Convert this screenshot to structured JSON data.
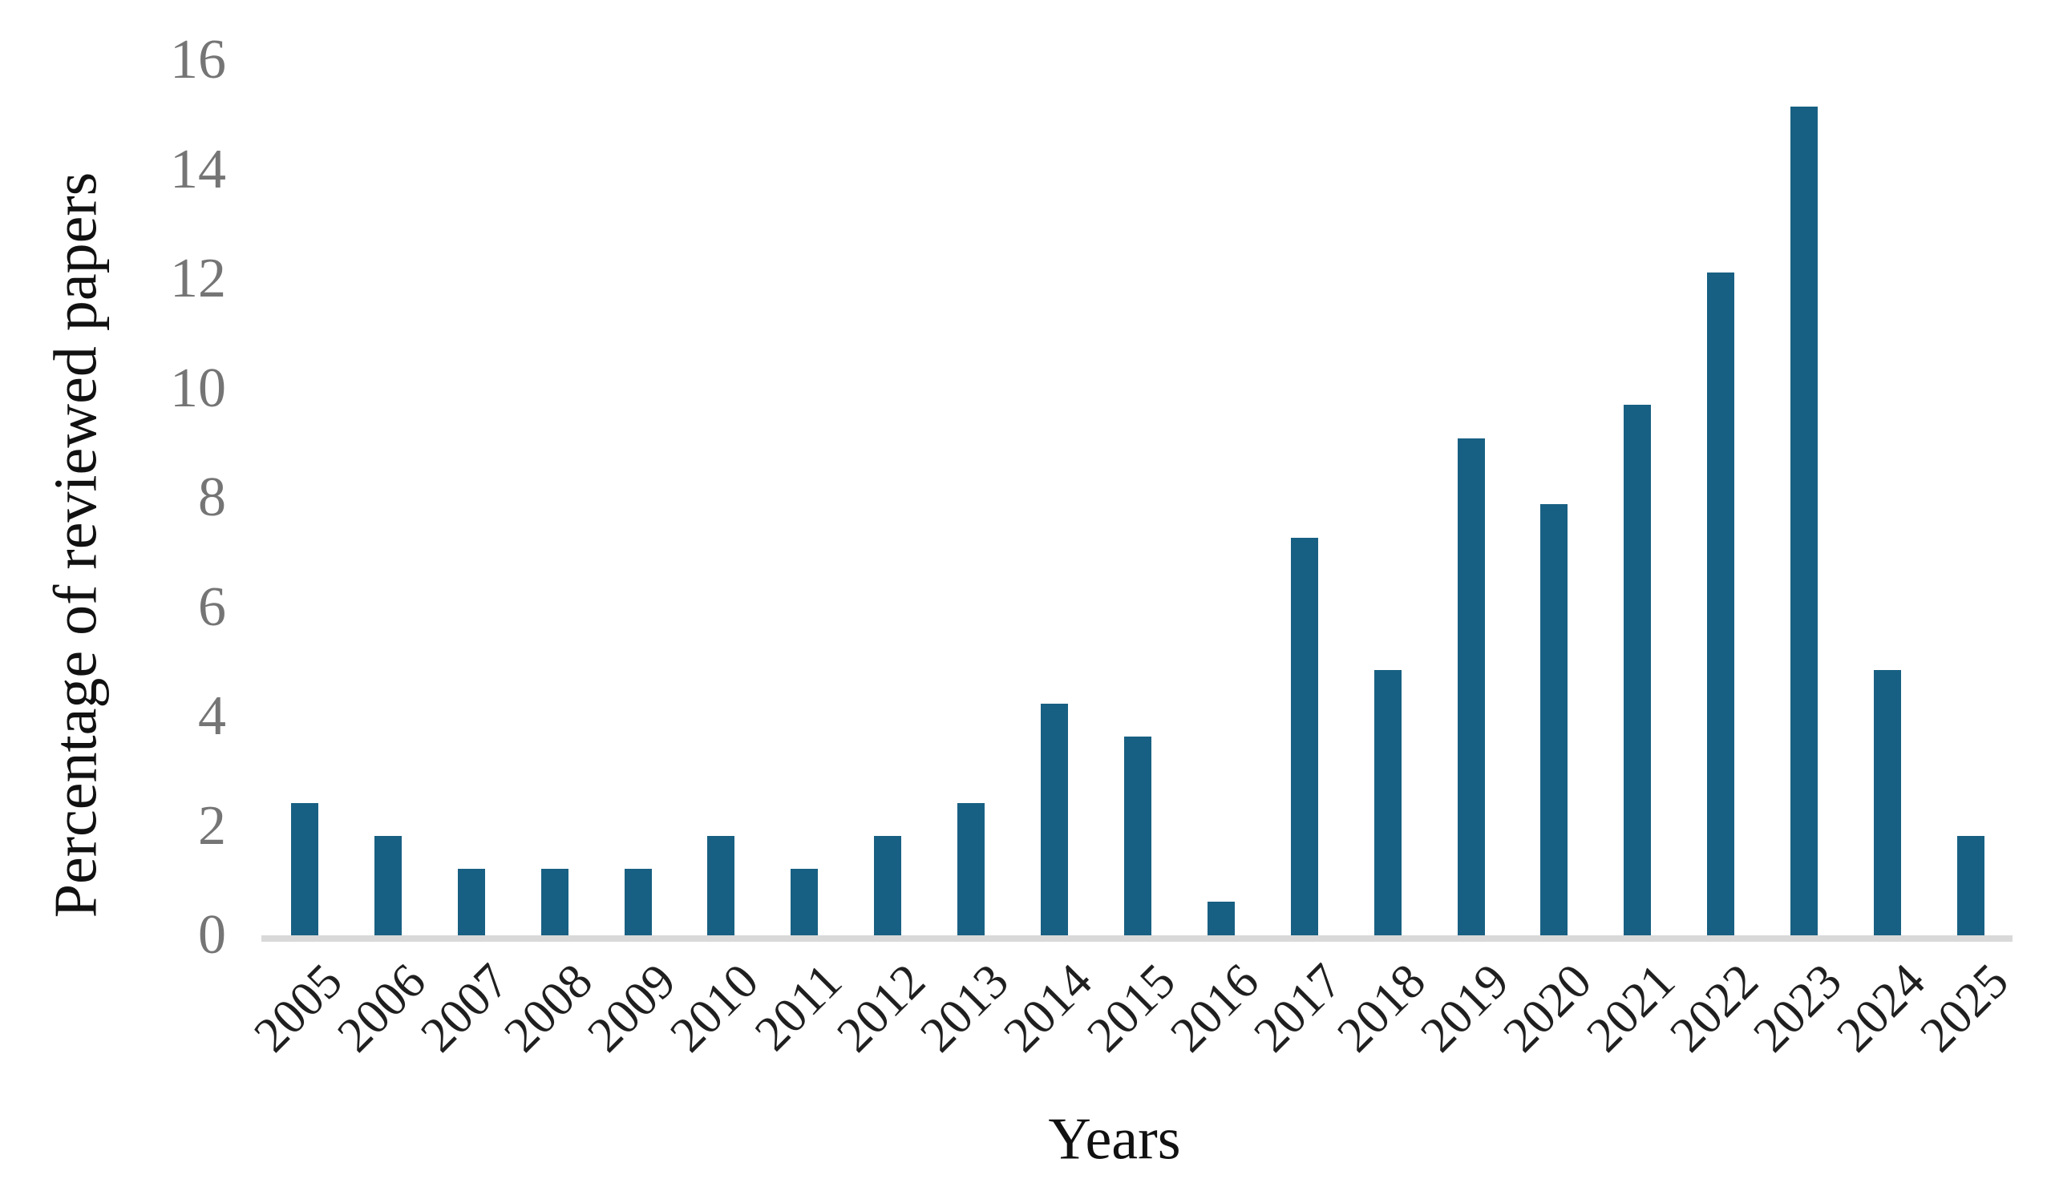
{
  "chart_data": {
    "type": "bar",
    "title": "",
    "xlabel": "Years",
    "ylabel": "Percentage of reviewed papers",
    "categories": [
      "2005",
      "2006",
      "2007",
      "2008",
      "2009",
      "2010",
      "2011",
      "2012",
      "2013",
      "2014",
      "2015",
      "2016",
      "2017",
      "2018",
      "2019",
      "2020",
      "2021",
      "2022",
      "2023",
      "2024",
      "2025"
    ],
    "values": [
      2.42,
      1.82,
      1.21,
      1.21,
      1.21,
      1.82,
      1.21,
      1.82,
      2.42,
      4.24,
      3.64,
      0.61,
      7.27,
      4.85,
      9.09,
      7.88,
      9.7,
      12.12,
      15.15,
      4.85,
      1.82
    ],
    "ylim": [
      0,
      16
    ],
    "yticks": [
      "0",
      "2",
      "4",
      "6",
      "8",
      "10",
      "12",
      "14",
      "16"
    ],
    "grid": false,
    "legend_position": "none",
    "bar_color": "#186083",
    "axis_line_color": "#d9d9d9",
    "ytick_color": "#757575",
    "xtick_color": "#1f1f1f",
    "axis_title_color": "#111111"
  }
}
